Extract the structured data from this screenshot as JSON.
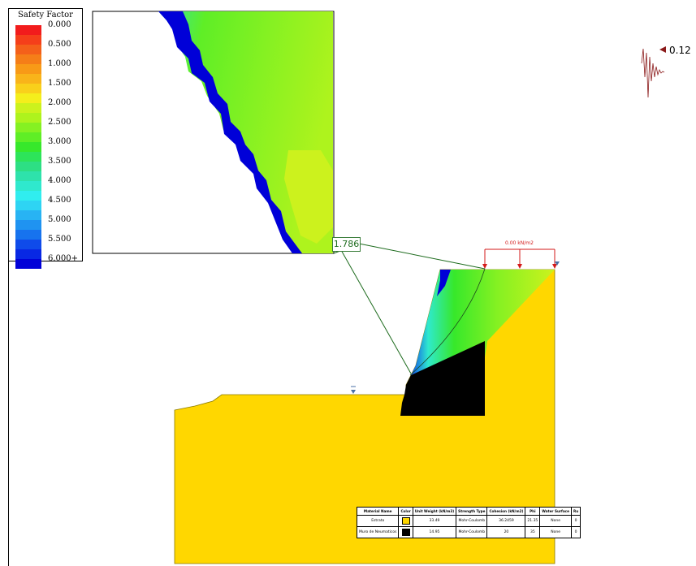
{
  "legend": {
    "title": "Safety Factor",
    "items": [
      {
        "label": "0.000",
        "color": "#f21c1c"
      },
      {
        "label": "",
        "color": "#f53f1a"
      },
      {
        "label": "0.500",
        "color": "#f4601a"
      },
      {
        "label": "",
        "color": "#f57e18"
      },
      {
        "label": "1.000",
        "color": "#f89a17"
      },
      {
        "label": "",
        "color": "#f9b41a"
      },
      {
        "label": "1.500",
        "color": "#f9d01b"
      },
      {
        "label": "",
        "color": "#f4ee1c"
      },
      {
        "label": "2.000",
        "color": "#ccf21d"
      },
      {
        "label": "",
        "color": "#aef31d"
      },
      {
        "label": "2.500",
        "color": "#85f122"
      },
      {
        "label": "",
        "color": "#5fee26"
      },
      {
        "label": "3.000",
        "color": "#37e82b"
      },
      {
        "label": "",
        "color": "#2de45a"
      },
      {
        "label": "3.500",
        "color": "#2ddf84"
      },
      {
        "label": "",
        "color": "#2ee2ab"
      },
      {
        "label": "4.000",
        "color": "#2fe9cd"
      },
      {
        "label": "",
        "color": "#30edef"
      },
      {
        "label": "4.500",
        "color": "#2ed4f3"
      },
      {
        "label": "",
        "color": "#28b3f3"
      },
      {
        "label": "5.000",
        "color": "#1f93f1"
      },
      {
        "label": "",
        "color": "#1773ee"
      },
      {
        "label": "5.500",
        "color": "#0f4bea"
      },
      {
        "label": "",
        "color": "#0828e4"
      },
      {
        "label": "6.000+",
        "color": "#0000d8"
      }
    ]
  },
  "factor_of_safety": "1.786",
  "seismic_coefficient": "0.12",
  "distributed_load_label": "0.00 kN/m2",
  "material_table": {
    "headers": [
      "Material Name",
      "Color",
      "Unit Weight (kN/m3)",
      "Strength Type",
      "Cohesion (kN/m2)",
      "Phi",
      "Water Surface",
      "Ru"
    ],
    "rows": [
      {
        "name": "Estrato",
        "color": "#ffd700",
        "unit_weight": "33.49",
        "strength": "Mohr-Coulomb",
        "cohesion": "36.2459",
        "phi": "21.35",
        "water": "None",
        "ru": "0"
      },
      {
        "name": "Muro de Neumaticos",
        "color": "#000000",
        "unit_weight": "14.95",
        "strength": "Mohr-Coulomb",
        "cohesion": "20",
        "phi": "35",
        "water": "None",
        "ru": "0"
      }
    ]
  },
  "colors": {
    "soil": "#ffd700",
    "wall": "#000000",
    "slip_surface": "#1d6b1d",
    "load": "#d31a1a",
    "seismic": "#8b1a1a"
  }
}
